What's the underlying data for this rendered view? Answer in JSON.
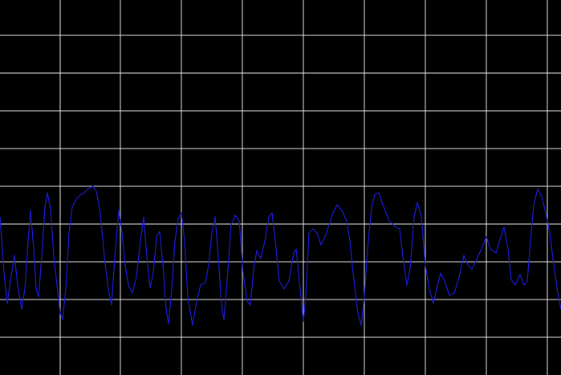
{
  "chart_data": {
    "type": "line",
    "x": [
      0,
      5,
      9,
      13,
      18,
      22,
      27,
      31,
      35,
      38,
      42,
      45,
      48,
      52,
      56,
      59,
      63,
      67,
      71,
      75,
      78,
      82,
      86,
      90,
      95,
      100,
      105,
      110,
      116,
      120,
      125,
      130,
      135,
      139,
      143,
      148,
      152,
      156,
      160,
      165,
      170,
      175,
      179,
      183,
      187,
      191,
      195,
      199,
      203,
      207,
      210,
      214,
      218,
      222,
      226,
      230,
      234,
      240,
      245,
      250,
      256,
      260,
      264,
      268,
      272,
      276,
      279,
      283,
      288,
      293,
      298,
      303,
      308,
      312,
      316,
      320,
      325,
      330,
      335,
      339,
      343,
      348,
      354,
      360,
      366,
      369,
      373,
      378,
      381,
      385,
      390,
      395,
      400,
      405,
      410,
      415,
      420,
      426,
      432,
      436,
      440,
      446,
      450,
      454,
      458,
      463,
      467,
      472,
      477,
      485,
      493,
      498,
      502,
      507,
      511,
      516,
      520,
      525,
      530,
      535,
      540,
      544,
      549,
      554,
      560,
      566,
      572,
      578,
      583,
      588,
      593,
      600,
      606,
      611,
      618,
      624,
      628,
      633,
      637,
      642,
      648,
      653,
      657,
      661,
      665,
      670,
      675,
      680,
      685,
      690,
      695,
      699
    ],
    "series": [
      {
        "color": "#1c1cd8",
        "values": [
          197,
          127,
          89,
          117,
          149,
          112,
          82,
          107,
          167,
          205,
          157,
          107,
          97,
          147,
          209,
          227,
          207,
          147,
          112,
          77,
          69,
          107,
          177,
          209,
          219,
          224,
          227,
          232,
          235,
          229,
          202,
          147,
          107,
          87,
          147,
          205,
          177,
          137,
          112,
          102,
          122,
          167,
          197,
          147,
          109,
          127,
          172,
          179,
          137,
          82,
          64,
          107,
          167,
          195,
          202,
          167,
          97,
          62,
          92,
          112,
          115,
          137,
          177,
          197,
          147,
          87,
          69,
          117,
          187,
          199,
          192,
          127,
          92,
          87,
          132,
          155,
          145,
          167,
          197,
          202,
          167,
          117,
          107,
          117,
          152,
          157,
          117,
          67,
          97,
          177,
          182,
          177,
          162,
          172,
          187,
          202,
          212,
          205,
          192,
          167,
          127,
          77,
          62,
          97,
          157,
          209,
          225,
          227,
          212,
          192,
          184,
          182,
          147,
          112,
          132,
          197,
          215,
          197,
          137,
          107,
          89,
          107,
          127,
          117,
          99,
          102,
          122,
          149,
          137,
          132,
          142,
          157,
          172,
          157,
          152,
          172,
          184,
          157,
          119,
          112,
          125,
          112,
          117,
          167,
          212,
          232,
          222,
          202,
          177,
          137,
          102,
          82
        ]
      }
    ],
    "xlim": [
      0,
      699
    ],
    "xticks": [
      75,
      150,
      226,
      302,
      378,
      454,
      530,
      606,
      682
    ],
    "ylim": [
      0,
      467
    ],
    "yticks": [
      47,
      94,
      141,
      188,
      235,
      282,
      329,
      376,
      423
    ],
    "grid": true,
    "background": "#000000",
    "grid_color": "#e6e6e6"
  }
}
